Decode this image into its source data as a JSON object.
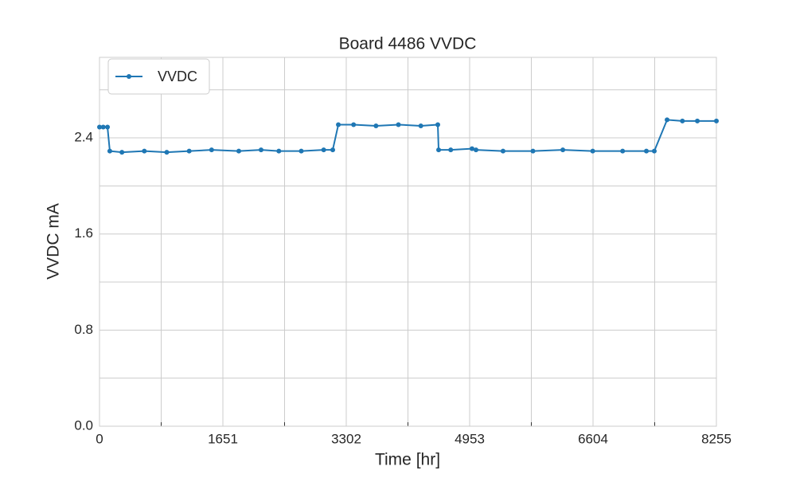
{
  "chart_data": {
    "type": "line",
    "title": "Board 4486 VVDC",
    "x_label": "Time [hr]",
    "y_label": "VVDC mA",
    "x": [
      0,
      50,
      107,
      138,
      300,
      600,
      900,
      1200,
      1500,
      1864,
      2162,
      2400,
      2700,
      3000,
      3121,
      3196,
      3400,
      3700,
      4000,
      4300,
      4527,
      4538,
      4700,
      4985,
      5038,
      5400,
      5800,
      6200,
      6600,
      7000,
      7318,
      7424,
      7595,
      7800,
      8000,
      8255
    ],
    "series": [
      {
        "name": "VVDC",
        "color": "#1f77b4",
        "values": [
          2.49,
          2.49,
          2.49,
          2.29,
          2.28,
          2.29,
          2.28,
          2.29,
          2.3,
          2.29,
          2.3,
          2.29,
          2.29,
          2.3,
          2.3,
          2.51,
          2.51,
          2.5,
          2.51,
          2.5,
          2.51,
          2.3,
          2.3,
          2.31,
          2.3,
          2.29,
          2.29,
          2.3,
          2.29,
          2.29,
          2.29,
          2.29,
          2.55,
          2.54,
          2.54,
          2.54
        ]
      }
    ],
    "xlim": [
      0,
      8255
    ],
    "ylim": [
      0,
      3.07
    ],
    "xticks": [
      0,
      1651,
      3302,
      4953,
      6604,
      8255
    ],
    "yticks": [
      {
        "value": 0,
        "label": "0.0"
      },
      0.8,
      1.6,
      2.4
    ],
    "xminorticks": [
      825.5,
      2476.5,
      4127.5,
      5778.5,
      7429.5
    ],
    "yminorticks": [
      0.4,
      1.2,
      2,
      2.8
    ],
    "grid": true,
    "legend": "upper left"
  }
}
